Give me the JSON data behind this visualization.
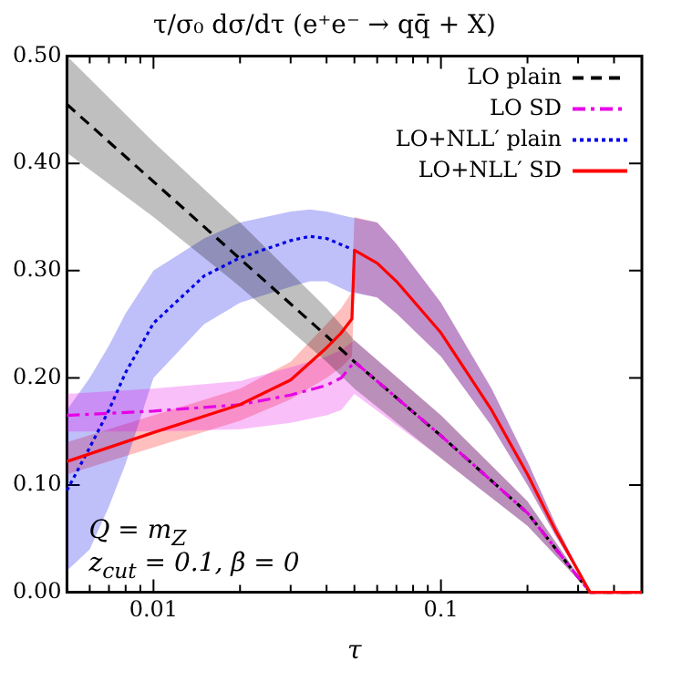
{
  "chart_data": {
    "type": "line",
    "title": "τ/σ₀ dσ/dτ (e⁺e⁻ → qq̄ + X)",
    "xlabel": "τ",
    "log": "x",
    "xlim": [
      0.005,
      0.5
    ],
    "ylim": [
      0,
      0.5
    ],
    "xticks": [
      {
        "value": 0.005,
        "label": null
      },
      {
        "value": 0.006,
        "label": null
      },
      {
        "value": 0.007,
        "label": null
      },
      {
        "value": 0.008,
        "label": null
      },
      {
        "value": 0.009,
        "label": null
      },
      0.01,
      {
        "value": 0.02,
        "label": null
      },
      {
        "value": 0.03,
        "label": null
      },
      {
        "value": 0.04,
        "label": null
      },
      {
        "value": 0.05,
        "label": null
      },
      {
        "value": 0.06,
        "label": null
      },
      {
        "value": 0.07,
        "label": null
      },
      {
        "value": 0.08,
        "label": null
      },
      {
        "value": 0.09,
        "label": null
      },
      0.1,
      {
        "value": 0.2,
        "label": null
      },
      {
        "value": 0.3,
        "label": null
      },
      {
        "value": 0.4,
        "label": null
      }
    ],
    "yticks": [
      {
        "value": 0,
        "label": "0.00"
      },
      {
        "value": 0.1,
        "label": "0.10"
      },
      {
        "value": 0.2,
        "label": "0.20"
      },
      {
        "value": 0.3,
        "label": "0.30"
      },
      {
        "value": 0.4,
        "label": "0.40"
      },
      {
        "value": 0.5,
        "label": "0.50"
      }
    ],
    "legend": "top right",
    "marker": "none",
    "grid": false,
    "annotations": [
      "Q = m$_{Z}$",
      "z$_{cut}$ = 0.1, β = 0"
    ],
    "series": [
      {
        "name": "LO plain",
        "color": "#000000",
        "line_style": "dashed",
        "x": [
          0.005,
          0.01,
          0.02,
          0.04,
          0.05,
          0.1,
          0.2,
          0.33,
          0.5
        ],
        "values": [
          0.455,
          0.383,
          0.311,
          0.239,
          0.215,
          0.146,
          0.074,
          0,
          0
        ],
        "lower": [
          0.41,
          0.35,
          0.285,
          0.215,
          0.19,
          0.125,
          0.062,
          0,
          0
        ],
        "upper": [
          0.5,
          0.42,
          0.345,
          0.265,
          0.235,
          0.165,
          0.085,
          0,
          0
        ]
      },
      {
        "name": "LO SD",
        "color": "#e600e6",
        "line_style": "dashdot",
        "x": [
          0.005,
          0.01,
          0.02,
          0.03,
          0.04,
          0.045,
          0.05,
          0.1,
          0.2,
          0.33,
          0.5
        ],
        "values": [
          0.165,
          0.169,
          0.175,
          0.184,
          0.193,
          0.2,
          0.215,
          0.146,
          0.074,
          0,
          0
        ],
        "lower": [
          0.15,
          0.15,
          0.152,
          0.158,
          0.165,
          0.17,
          0.185,
          0.125,
          0.062,
          0,
          0
        ],
        "upper": [
          0.185,
          0.19,
          0.197,
          0.21,
          0.22,
          0.226,
          0.235,
          0.165,
          0.085,
          0,
          0
        ]
      },
      {
        "name": "LO+NLL′ plain",
        "color": "#0000e6",
        "line_style": "dotted",
        "x": [
          0.005,
          0.006,
          0.007,
          0.008,
          0.01,
          0.015,
          0.02,
          0.03,
          0.035,
          0.04,
          0.048,
          0.06,
          0.07,
          0.1,
          0.15,
          0.2,
          0.25,
          0.33,
          0.5
        ],
        "values": [
          0.095,
          0.135,
          0.17,
          0.205,
          0.251,
          0.295,
          0.312,
          0.328,
          0.332,
          0.33,
          0.321,
          null,
          null,
          null,
          null,
          null,
          null,
          null,
          null
        ],
        "lower": [
          0.02,
          0.04,
          0.08,
          0.12,
          0.2,
          0.25,
          0.27,
          0.285,
          0.29,
          0.29,
          0.28,
          0.275,
          0.26,
          0.22,
          0.155,
          0.1,
          0.053,
          0,
          0
        ],
        "upper": [
          0.17,
          0.2,
          0.23,
          0.26,
          0.3,
          0.33,
          0.345,
          0.355,
          0.357,
          0.355,
          0.35,
          0.345,
          0.325,
          0.27,
          0.19,
          0.122,
          0.064,
          0,
          0
        ]
      },
      {
        "name": "LO+NLL′ SD",
        "color": "#ff0000",
        "line_style": "solid",
        "x": [
          0.005,
          0.01,
          0.02,
          0.03,
          0.04,
          0.045,
          0.049,
          0.05,
          0.06,
          0.07,
          0.1,
          0.15,
          0.2,
          0.25,
          0.33,
          0.5
        ],
        "values": [
          0.122,
          0.149,
          0.175,
          0.198,
          0.228,
          0.242,
          0.255,
          0.319,
          0.307,
          0.29,
          0.242,
          0.17,
          0.11,
          0.058,
          0,
          0
        ],
        "lower": [
          0.11,
          0.135,
          0.16,
          0.18,
          0.2,
          0.21,
          0.22,
          0.28,
          0.275,
          0.26,
          0.22,
          0.155,
          0.1,
          0.053,
          0,
          0
        ],
        "upper": [
          0.14,
          0.165,
          0.19,
          0.215,
          0.25,
          0.265,
          0.28,
          0.35,
          0.345,
          0.325,
          0.27,
          0.19,
          0.122,
          0.064,
          0,
          0
        ]
      }
    ]
  }
}
